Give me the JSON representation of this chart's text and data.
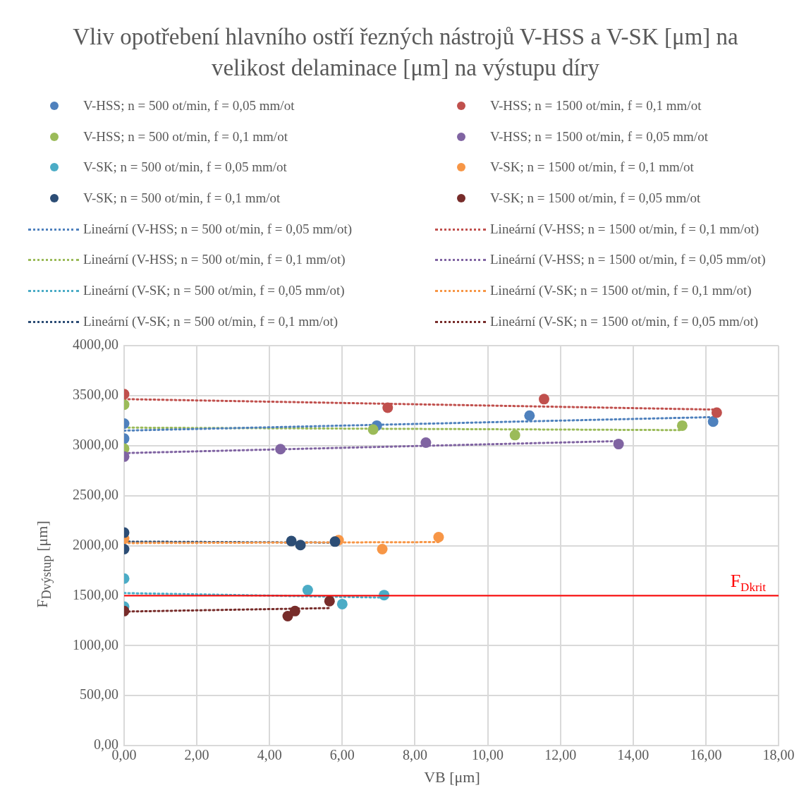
{
  "chart_data": {
    "type": "scatter",
    "title": "Vliv opotřebení hlavního ostří řezných nástrojů V-HSS a V-SK [μm] na velikost delaminace [μm] na výstupu díry",
    "xlabel": "VB [μm]",
    "ylabel": "F$_{Dvýstup}$ [μm]",
    "xlim": [
      0,
      18
    ],
    "xticks": [
      {
        "value": 0,
        "label": "0,00"
      },
      {
        "value": 2,
        "label": "2,00"
      },
      {
        "value": 4,
        "label": "4,00"
      },
      {
        "value": 6,
        "label": "6,00"
      },
      {
        "value": 8,
        "label": "8,00"
      },
      {
        "value": 10,
        "label": "10,00"
      },
      {
        "value": 12,
        "label": "12,00"
      },
      {
        "value": 14,
        "label": "14,00"
      },
      {
        "value": 16,
        "label": "16,00"
      },
      {
        "value": 18,
        "label": "18,00"
      }
    ],
    "ylim": [
      0,
      4000
    ],
    "yticks": [
      {
        "value": 0,
        "label": "0,00"
      },
      {
        "value": 500,
        "label": "500,00"
      },
      {
        "value": 1000,
        "label": "1000,00"
      },
      {
        "value": 1500,
        "label": "1500,00"
      },
      {
        "value": 2000,
        "label": "2000,00"
      },
      {
        "value": 2500,
        "label": "2500,00"
      },
      {
        "value": 3000,
        "label": "3000,00"
      },
      {
        "value": 3500,
        "label": "3500,00"
      },
      {
        "value": 4000,
        "label": "4000,00"
      }
    ],
    "grid": true,
    "legend": "top",
    "marker": "circle",
    "series": [
      {
        "name": "V-HSS; n = 500 ot/min, f = 0,05 mm/ot",
        "color": "#4f81bd",
        "x": [
          0,
          0,
          6.95,
          11.15,
          16.2
        ],
        "values": [
          3220,
          3070,
          3200,
          3300,
          3240
        ]
      },
      {
        "name": "V-HSS; n = 1500 ot/min, f = 0,1 mm/ot",
        "color": "#c0504d",
        "x": [
          0,
          7.25,
          11.55,
          16.3
        ],
        "values": [
          3515,
          3380,
          3465,
          3330
        ]
      },
      {
        "name": "V-HSS; n = 500 ot/min, f = 0,1 mm/ot",
        "color": "#9bbb59",
        "x": [
          0,
          0,
          6.85,
          10.75,
          15.35
        ],
        "values": [
          3410,
          2970,
          3160,
          3105,
          3200
        ]
      },
      {
        "name": "V-HSS; n = 1500 ot/min, f = 0,05 mm/ot",
        "color": "#8064a2",
        "x": [
          0,
          4.3,
          8.3,
          13.6
        ],
        "values": [
          2890,
          2965,
          3030,
          3015
        ]
      },
      {
        "name": "V-SK; n = 500 ot/min, f = 0,05 mm/ot",
        "color": "#4bacc6",
        "x": [
          0,
          0,
          5.05,
          6.0,
          7.15
        ],
        "values": [
          1670,
          1390,
          1555,
          1415,
          1505
        ]
      },
      {
        "name": "V-SK; n = 1500 ot/min, f = 0,1 mm/ot",
        "color": "#f79646",
        "x": [
          0,
          5.9,
          7.1,
          8.65
        ],
        "values": [
          2070,
          2055,
          1965,
          2085
        ]
      },
      {
        "name": "V-SK; n = 500 ot/min, f = 0,1 mm/ot",
        "color": "#2c4d75",
        "x": [
          0,
          0,
          4.6,
          4.85,
          5.8
        ],
        "values": [
          2130,
          1965,
          2045,
          2005,
          2040
        ]
      },
      {
        "name": "V-SK; n = 1500 ot/min, f = 0,05 mm/ot",
        "color": "#772c2a",
        "x": [
          0,
          4.5,
          4.7,
          5.65
        ],
        "values": [
          1345,
          1295,
          1345,
          1445
        ]
      },
      {
        "name": "Lineární (V-HSS; n = 500 ot/min, f = 0,05 mm/ot)",
        "type": "line",
        "line_style": "dotted",
        "marker": "none",
        "color": "#4f81bd",
        "x": [
          0,
          16.2
        ],
        "values": [
          3150,
          3285
        ]
      },
      {
        "name": "Lineární (V-HSS; n = 1500 ot/min, f = 0,1 mm/ot)",
        "type": "line",
        "line_style": "dotted",
        "marker": "none",
        "color": "#c0504d",
        "x": [
          0,
          16.3
        ],
        "values": [
          3465,
          3360
        ]
      },
      {
        "name": "Lineární (V-HSS; n = 500 ot/min, f = 0,1 mm/ot)",
        "type": "line",
        "line_style": "dotted",
        "marker": "none",
        "color": "#9bbb59",
        "x": [
          0,
          15.35
        ],
        "values": [
          3180,
          3155
        ]
      },
      {
        "name": "Lineární (V-HSS; n = 1500 ot/min, f = 0,05 mm/ot)",
        "type": "line",
        "line_style": "dotted",
        "marker": "none",
        "color": "#8064a2",
        "x": [
          0,
          13.6
        ],
        "values": [
          2925,
          3045
        ]
      },
      {
        "name": "Lineární (V-SK; n = 500 ot/min, f = 0,05 mm/ot)",
        "type": "line",
        "line_style": "dotted",
        "marker": "none",
        "color": "#4bacc6",
        "x": [
          0,
          7.15
        ],
        "values": [
          1525,
          1480
        ]
      },
      {
        "name": "Lineární (V-SK; n = 1500 ot/min, f = 0,1 mm/ot)",
        "type": "line",
        "line_style": "dotted",
        "marker": "none",
        "color": "#f79646",
        "x": [
          0,
          8.65
        ],
        "values": [
          2025,
          2035
        ]
      },
      {
        "name": "Lineární (V-SK; n = 500 ot/min, f = 0,1 mm/ot)",
        "type": "line",
        "line_style": "dotted",
        "marker": "none",
        "color": "#2c4d75",
        "x": [
          0,
          5.8
        ],
        "values": [
          2040,
          2030
        ]
      },
      {
        "name": "Lineární (V-SK; n = 1500 ot/min, f = 0,05 mm/ot)",
        "type": "line",
        "line_style": "dotted",
        "marker": "none",
        "color": "#772c2a",
        "x": [
          0,
          5.65
        ],
        "values": [
          1340,
          1375
        ]
      }
    ],
    "ref_lines": [
      {
        "axis": "y",
        "value": 1500,
        "label": "F$_{Dkrit}$",
        "color": "#ff0000"
      }
    ]
  }
}
